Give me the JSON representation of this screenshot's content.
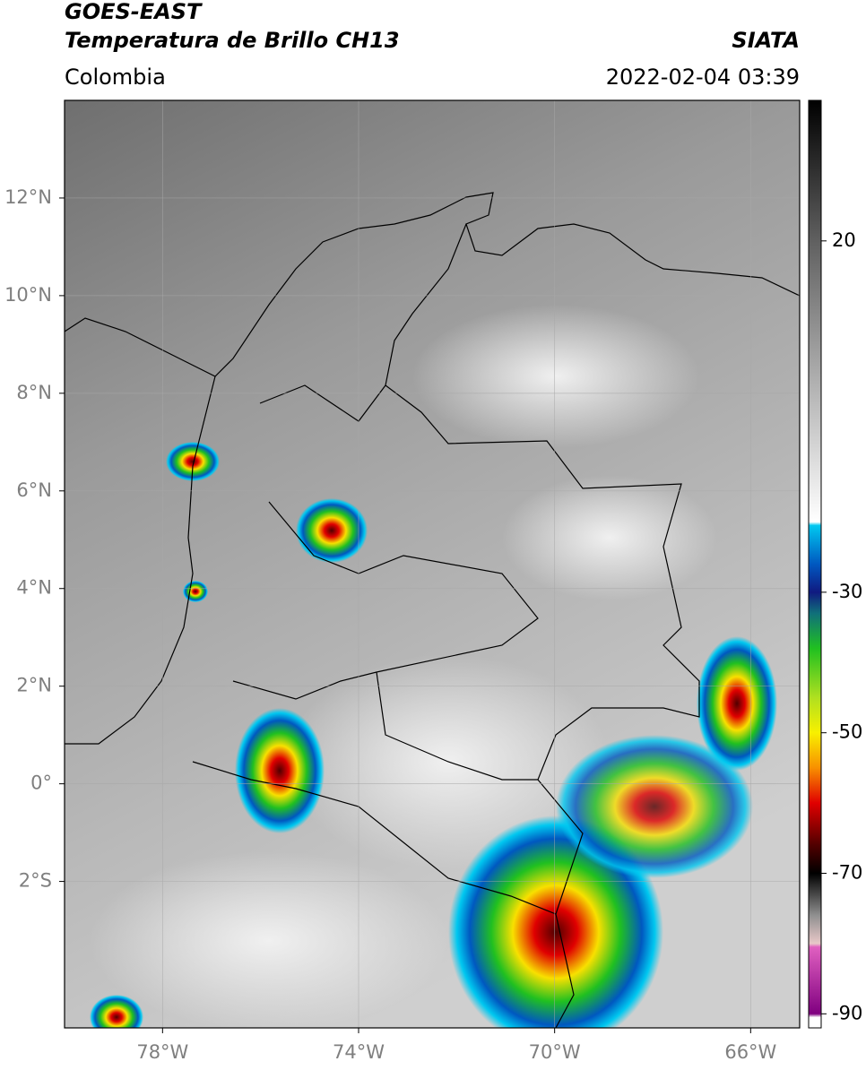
{
  "header": {
    "title": "GOES-EAST",
    "subtitle": "Temperatura de Brillo CH13",
    "source": "SIATA",
    "region": "Colombia",
    "datetime": "2022-02-04 03:39"
  },
  "map": {
    "xlim": [
      -80,
      -65
    ],
    "ylim": [
      -5,
      14
    ],
    "xticks": [
      {
        "value": -78,
        "label": "78°W"
      },
      {
        "value": -74,
        "label": "74°W"
      },
      {
        "value": -70,
        "label": "70°W"
      },
      {
        "value": -66,
        "label": "66°W"
      }
    ],
    "yticks": [
      {
        "value": 12,
        "label": "12°N"
      },
      {
        "value": 10,
        "label": "10°N"
      },
      {
        "value": 8,
        "label": "8°N"
      },
      {
        "value": 6,
        "label": "6°N"
      },
      {
        "value": 4,
        "label": "4°N"
      },
      {
        "value": 2,
        "label": "2°N"
      },
      {
        "value": 0,
        "label": "0°"
      },
      {
        "value": -2,
        "label": "2°S"
      }
    ],
    "grid": true
  },
  "colorbar": {
    "clim": [
      -92,
      40
    ],
    "ticks": [
      20,
      -30,
      -50,
      -70,
      -90
    ],
    "colormap": [
      {
        "value": 40,
        "color": "#000000"
      },
      {
        "value": 20,
        "color": "#606060"
      },
      {
        "value": -20,
        "color": "#ffffff"
      },
      {
        "value": -20.5,
        "color": "#00c8f0"
      },
      {
        "value": -26,
        "color": "#0058c0"
      },
      {
        "value": -30,
        "color": "#101a80"
      },
      {
        "value": -33,
        "color": "#10707a"
      },
      {
        "value": -38,
        "color": "#20c020"
      },
      {
        "value": -45,
        "color": "#b0e020"
      },
      {
        "value": -50,
        "color": "#f8f000"
      },
      {
        "value": -55,
        "color": "#f89000"
      },
      {
        "value": -60,
        "color": "#e00000"
      },
      {
        "value": -66,
        "color": "#500000"
      },
      {
        "value": -70,
        "color": "#000000"
      },
      {
        "value": -76,
        "color": "#909090"
      },
      {
        "value": -80,
        "color": "#e8c8c8"
      },
      {
        "value": -80.5,
        "color": "#e060c0"
      },
      {
        "value": -90,
        "color": "#800080"
      },
      {
        "value": -90.5,
        "color": "#ffffff"
      },
      {
        "value": -92,
        "color": "#ffffff"
      }
    ]
  }
}
